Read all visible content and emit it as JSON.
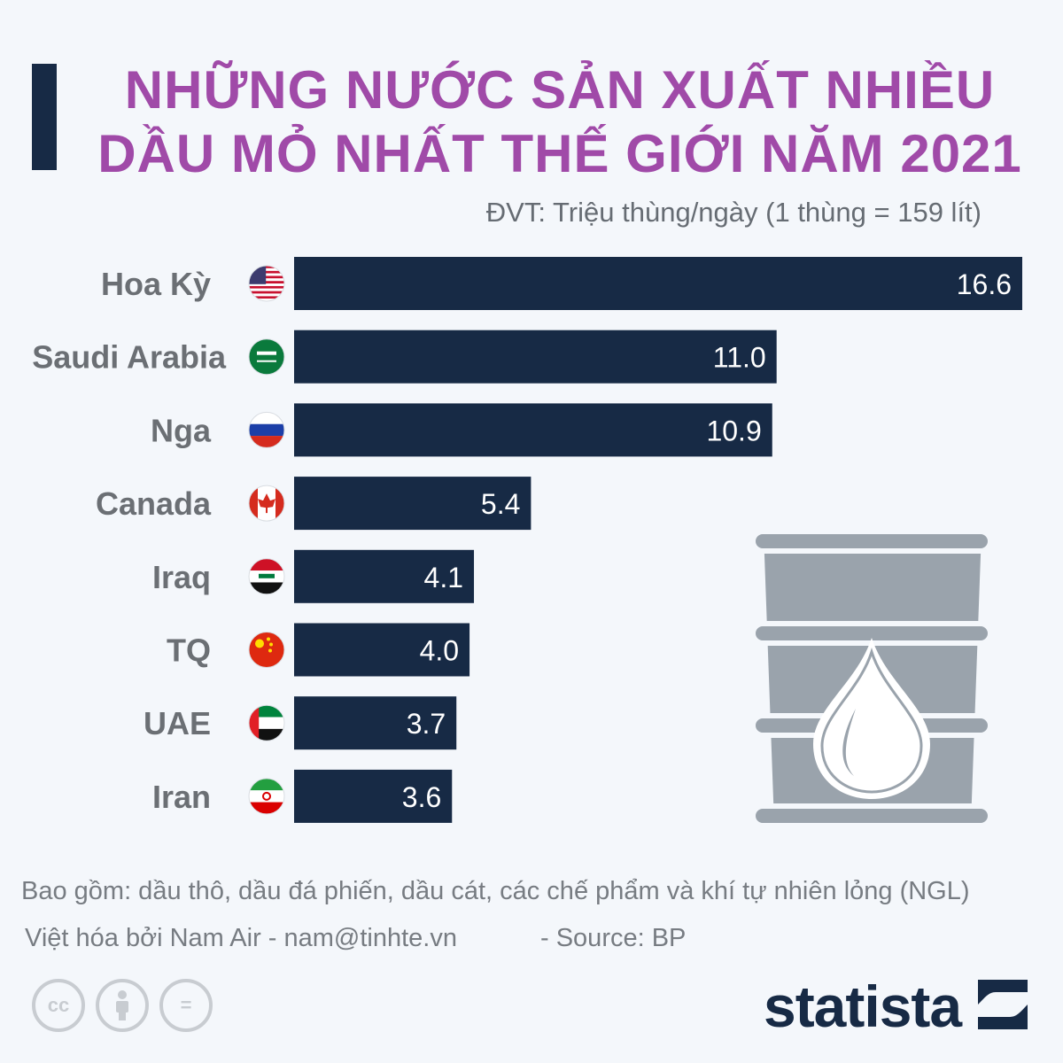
{
  "title": {
    "line1": "NHỮNG NƯỚC SẢN XUẤT NHIỀU",
    "line2": "DẦU MỎ NHẤT THẾ GIỚI NĂM 2021"
  },
  "unit_note": "ĐVT: Triệu thùng/ngày (1 thùng = 159 lít)",
  "chart_data": {
    "type": "bar",
    "orientation": "horizontal",
    "categories": [
      "Hoa Kỳ",
      "Saudi Arabia",
      "Nga",
      "Canada",
      "Iraq",
      "TQ",
      "UAE",
      "Iran"
    ],
    "values": [
      16.6,
      11.0,
      10.9,
      5.4,
      4.1,
      4.0,
      3.7,
      3.6
    ],
    "value_labels": [
      "16.6",
      "11.0",
      "10.9",
      "5.4",
      "4.1",
      "4.0",
      "3.7",
      "3.6"
    ],
    "flags": [
      "usa-flag-icon",
      "saudi-arabia-flag-icon",
      "russia-flag-icon",
      "canada-flag-icon",
      "iraq-flag-icon",
      "china-flag-icon",
      "uae-flag-icon",
      "iran-flag-icon"
    ],
    "xlim": [
      0,
      16.6
    ],
    "grid": false,
    "bar_color": "#172a45",
    "value_label_color": "#ffffff",
    "category_label_color": "#6b6f74"
  },
  "footnote": "Bao gồm: dầu thô, dầu đá phiến, dầu cát, các chế phẩm và khí tự nhiên lỏng (NGL)",
  "credit": "Việt hóa bởi Nam Air - nam@tinhte.vn",
  "source": "-  Source: BP",
  "license_icons": [
    "cc-icon",
    "attribution-icon",
    "no-derivatives-icon"
  ],
  "license_text": [
    "cc",
    "",
    "="
  ],
  "brand": {
    "name": "statista",
    "icon": "statista-logo-icon",
    "color": "#172a45"
  },
  "decoration": {
    "icon": "oil-barrel-icon",
    "color": "#9aa3ac"
  }
}
